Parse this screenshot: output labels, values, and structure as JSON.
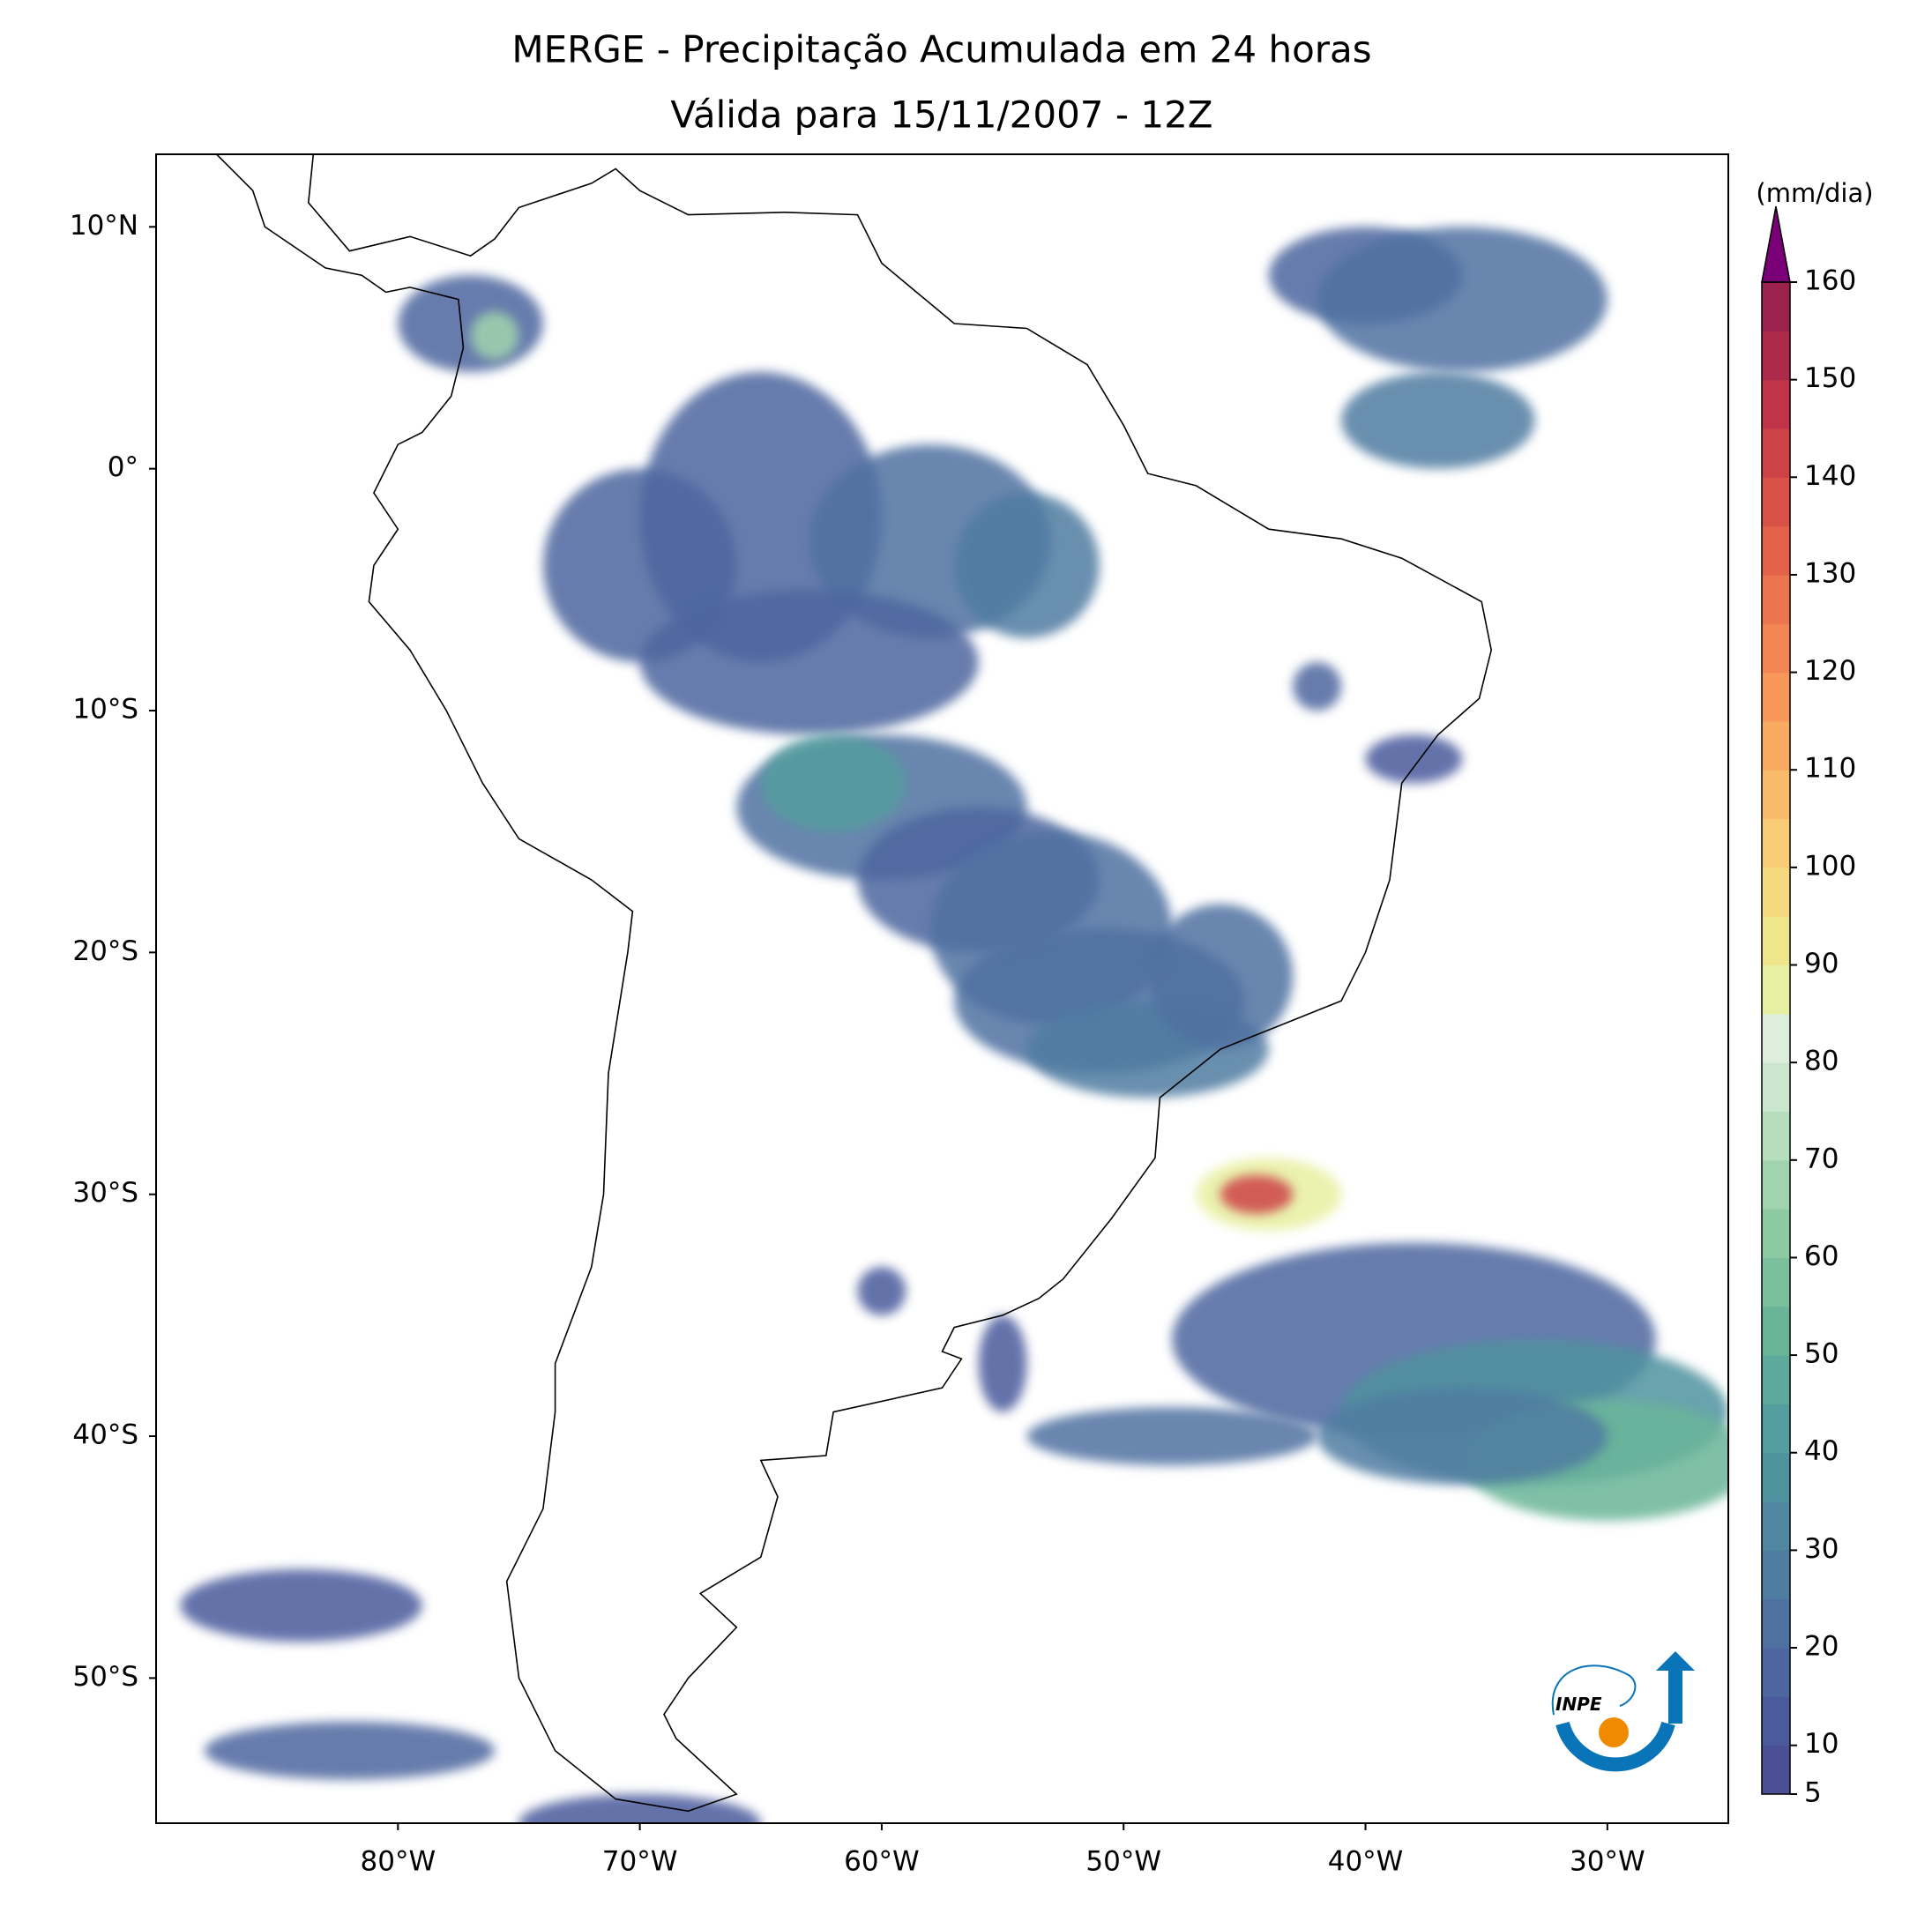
{
  "chart_data": {
    "type": "map",
    "title": "MERGE - Precipitação Acumulada em 24 horas",
    "subtitle": "Válida para 15/11/2007 - 12Z",
    "xlim": [
      -90,
      -25
    ],
    "ylim": [
      -56,
      13
    ],
    "xticks": [
      {
        "value": -80,
        "label": "80°W"
      },
      {
        "value": -70,
        "label": "70°W"
      },
      {
        "value": -60,
        "label": "60°W"
      },
      {
        "value": -50,
        "label": "50°W"
      },
      {
        "value": -40,
        "label": "40°W"
      },
      {
        "value": -30,
        "label": "30°W"
      }
    ],
    "yticks": [
      {
        "value": 10,
        "label": "10°N"
      },
      {
        "value": 0,
        "label": "0°"
      },
      {
        "value": -10,
        "label": "10°S"
      },
      {
        "value": -20,
        "label": "20°S"
      },
      {
        "value": -30,
        "label": "30°S"
      },
      {
        "value": -40,
        "label": "40°S"
      },
      {
        "value": -50,
        "label": "50°S"
      }
    ],
    "colorbar": {
      "label": "(mm/dia)",
      "clim": [
        5,
        160
      ],
      "ticks": [
        5,
        10,
        20,
        30,
        40,
        50,
        60,
        70,
        80,
        90,
        100,
        110,
        120,
        130,
        140,
        150,
        160
      ],
      "colors": [
        "#4a4f96",
        "#4a5a9c",
        "#4d669f",
        "#4f71a1",
        "#4f7ca1",
        "#4f88a0",
        "#4f939f",
        "#539e9e",
        "#5da99b",
        "#6ab599",
        "#7bc09c",
        "#8dcaa3",
        "#a1d4ae",
        "#b6ddbc",
        "#cae6cc",
        "#ddeedd",
        "#e7f0a0",
        "#efe58a",
        "#f5d97e",
        "#f8cb74",
        "#f9bb6a",
        "#f9aa61",
        "#f7985a",
        "#f38653",
        "#ec744e",
        "#e3634a",
        "#d95248",
        "#cd4247",
        "#bf3448",
        "#ae2a4a",
        "#9b224c"
      ],
      "extend_color": "#7a0078"
    },
    "logo_text": "INPE"
  }
}
